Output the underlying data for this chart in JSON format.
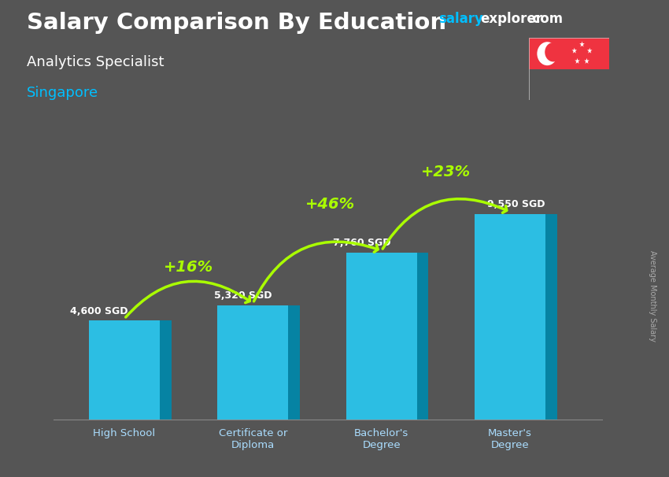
{
  "title": "Salary Comparison By Education",
  "subtitle": "Analytics Specialist",
  "location": "Singapore",
  "ylabel": "Average Monthly Salary",
  "categories": [
    "High School",
    "Certificate or\nDiploma",
    "Bachelor's\nDegree",
    "Master's\nDegree"
  ],
  "values": [
    4600,
    5320,
    7760,
    9550
  ],
  "labels": [
    "4,600 SGD",
    "5,320 SGD",
    "7,760 SGD",
    "9,550 SGD"
  ],
  "pct_changes": [
    "+16%",
    "+46%",
    "+23%"
  ],
  "bar_front_color": "#29C8F0",
  "bar_side_color": "#0088AA",
  "bar_top_color": "#55DDFF",
  "bg_color": "#555555",
  "title_color": "#ffffff",
  "subtitle_color": "#ffffff",
  "location_color": "#00BFFF",
  "label_color": "#ffffff",
  "pct_color": "#aaff00",
  "watermark_salary_color": "#00BFFF",
  "watermark_other_color": "#ffffff",
  "axis_label_color": "#aaddff",
  "ylim": [
    0,
    11500
  ],
  "bar_width": 0.55,
  "side_depth": 0.09,
  "flag_red": "#EF3340",
  "flag_white": "#ffffff"
}
